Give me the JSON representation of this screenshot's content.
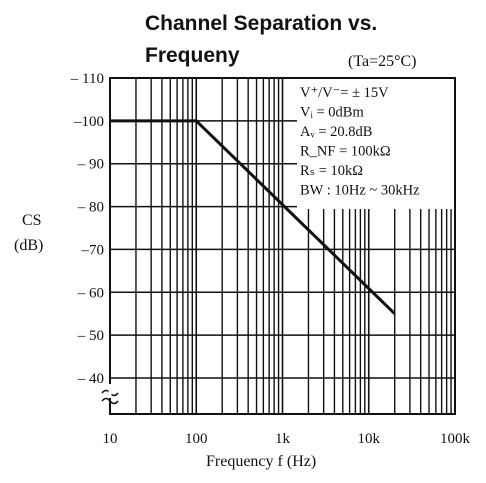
{
  "chart_data": {
    "type": "line",
    "title_line1": "Channel Separation vs.",
    "title_line2": "Frequeny",
    "condition": "(Ta=25°C)",
    "xlabel": "Frequency f (Hz)",
    "ylabel_line1": "CS",
    "ylabel_line2": "(dB)",
    "x_scale": "log",
    "xlim": [
      10,
      100000
    ],
    "ylim": [
      -30,
      -110
    ],
    "x_ticks": [
      {
        "value": 10,
        "label": "10"
      },
      {
        "value": 100,
        "label": "100"
      },
      {
        "value": 1000,
        "label": "1k"
      },
      {
        "value": 10000,
        "label": "10k"
      },
      {
        "value": 100000,
        "label": "100k"
      }
    ],
    "y_ticks": [
      {
        "value": -110,
        "label": "– 110"
      },
      {
        "value": -100,
        "label": "–100"
      },
      {
        "value": -90,
        "label": "– 90"
      },
      {
        "value": -80,
        "label": "– 80"
      },
      {
        "value": -70,
        "label": "–70"
      },
      {
        "value": -60,
        "label": "– 60"
      },
      {
        "value": -50,
        "label": "– 50"
      },
      {
        "value": -40,
        "label": "– 40"
      }
    ],
    "axis_break": true,
    "grid": true,
    "conditions_box": [
      "V⁺/V⁻= ± 15V",
      "Vᵢ = 0dBm",
      "Aᵥ = 20.8dB",
      "R_NF = 100kΩ",
      "Rₛ = 10kΩ",
      "BW : 10Hz ~ 30kHz"
    ],
    "series": [
      {
        "x": [
          10,
          100,
          20000
        ],
        "y": [
          -100,
          -100,
          -55
        ]
      }
    ]
  }
}
